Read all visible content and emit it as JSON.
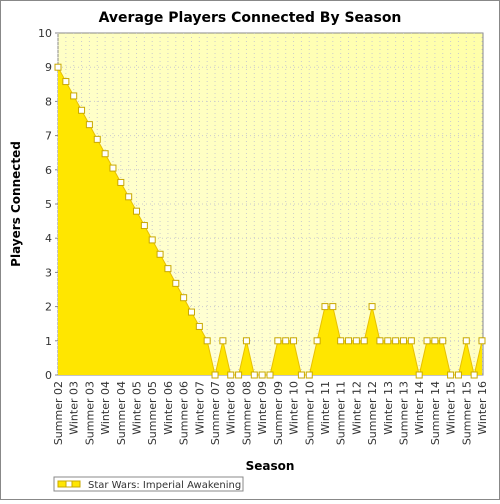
{
  "chart_data": {
    "type": "area",
    "title": "Average Players Connected By Season",
    "x_label": "Season",
    "y_label": "Players Connected",
    "categories": [
      "Summer 02",
      null,
      "Winter 03",
      null,
      "Summer 03",
      null,
      "Winter 04",
      null,
      "Summer 04",
      null,
      "Winter 05",
      null,
      "Summer 05",
      null,
      "Winter 06",
      null,
      "Summer 06",
      null,
      "Winter 07",
      null,
      "Summer 07",
      null,
      "Winter 08",
      null,
      "Summer 08",
      null,
      "Winter 09",
      null,
      "Summer 09",
      null,
      "Winter 10",
      null,
      "Summer 10",
      null,
      "Winter 11",
      null,
      "Summer 11",
      null,
      "Winter 12",
      null,
      "Summer 12",
      null,
      "Winter 13",
      null,
      "Summer 13",
      null,
      "Winter 14",
      null,
      "Summer 14",
      null,
      "Winter 15",
      null,
      "Summer 15",
      null,
      "Winter 16"
    ],
    "series": [
      {
        "name": "Star Wars: Imperial Awakening",
        "color": "#ffe600",
        "values": [
          9,
          8.58,
          8.16,
          7.74,
          7.32,
          6.89,
          6.47,
          6.05,
          5.63,
          5.21,
          4.79,
          4.37,
          3.95,
          3.53,
          3.11,
          2.68,
          2.26,
          1.84,
          1.42,
          1,
          0,
          1,
          0,
          0,
          1,
          0,
          0,
          0,
          1,
          1,
          1,
          0,
          0,
          1,
          2,
          2,
          1,
          1,
          1,
          1,
          2,
          1,
          1,
          1,
          1,
          1,
          0,
          1,
          1,
          1,
          0,
          0,
          1,
          0,
          1
        ]
      }
    ],
    "ylim": [
      0,
      10
    ],
    "yticks": [
      0,
      1,
      2,
      3,
      4,
      5,
      6,
      7,
      8,
      9,
      10
    ],
    "grid": true
  }
}
